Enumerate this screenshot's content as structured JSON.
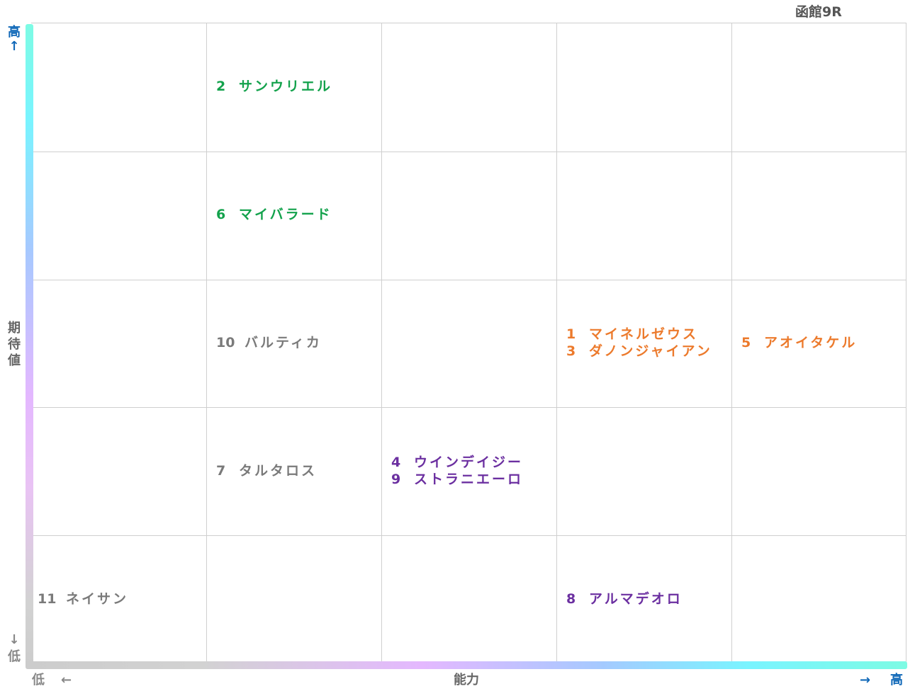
{
  "race_title": "函館9R",
  "axes": {
    "y_title": "期待値",
    "y_high": "高",
    "y_high_arrow": "↑",
    "y_low": "低",
    "y_low_arrow": "↓",
    "x_title": "能力",
    "x_low": "低",
    "x_low_arrow": "←",
    "x_high": "高",
    "x_high_arrow": "→"
  },
  "colors": {
    "green": "#13a24c",
    "gray": "#7a7a7a",
    "orange": "#ec7a2c",
    "purple": "#6b2fa0",
    "axis_high": "#1068b8"
  },
  "chart_data": {
    "type": "scatter",
    "grid": {
      "columns": 5,
      "rows": 5,
      "gridlines": true
    },
    "x_label": "能力",
    "y_label": "期待値",
    "points": [
      {
        "number": "1",
        "name": "マイネルゼウス",
        "ability": 4,
        "expectation": 3,
        "color": "orange"
      },
      {
        "number": "2",
        "name": "サンウリエル",
        "ability": 2,
        "expectation": 5,
        "color": "green"
      },
      {
        "number": "3",
        "name": "ダノンジャイアン",
        "ability": 4,
        "expectation": 3,
        "color": "orange"
      },
      {
        "number": "4",
        "name": "ウインデイジー",
        "ability": 3,
        "expectation": 2,
        "color": "purple"
      },
      {
        "number": "5",
        "name": "アオイタケル",
        "ability": 5,
        "expectation": 3,
        "color": "orange"
      },
      {
        "number": "6",
        "name": "マイバラード",
        "ability": 2,
        "expectation": 4,
        "color": "green"
      },
      {
        "number": "7",
        "name": "タルタロス",
        "ability": 2,
        "expectation": 2,
        "color": "gray"
      },
      {
        "number": "8",
        "name": "アルマデオロ",
        "ability": 4,
        "expectation": 1,
        "color": "purple"
      },
      {
        "number": "9",
        "name": "ストラニエーロ",
        "ability": 3,
        "expectation": 2,
        "color": "purple"
      },
      {
        "number": "10",
        "name": "バルティカ",
        "ability": 2,
        "expectation": 3,
        "color": "gray"
      },
      {
        "number": "11",
        "name": "ネイサン",
        "ability": 1,
        "expectation": 1,
        "color": "gray"
      }
    ]
  }
}
